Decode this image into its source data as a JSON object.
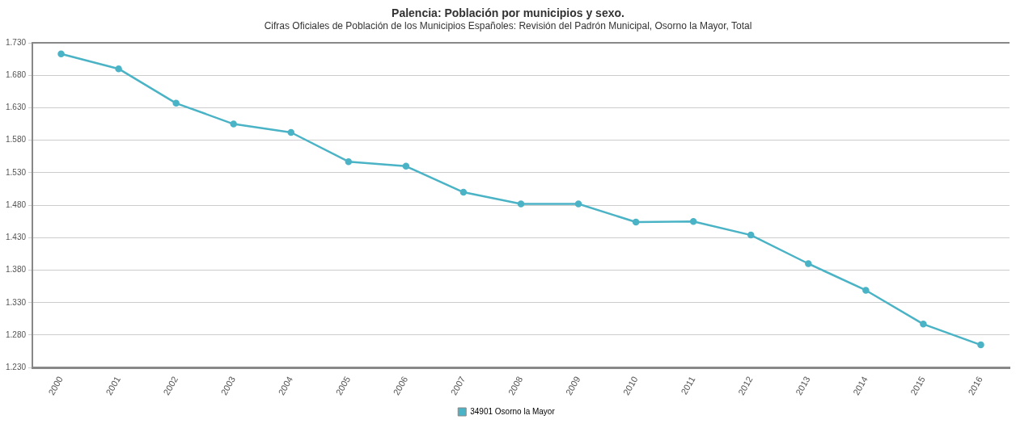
{
  "chart_data": {
    "type": "line",
    "title": "Palencia: Población por municipios y sexo.",
    "subtitle": "Cifras Oficiales de Población de los Municipios Españoles: Revisión del Padrón Municipal, Osorno la Mayor, Total",
    "categories": [
      "2000",
      "2001",
      "2002",
      "2003",
      "2004",
      "2005",
      "2006",
      "2007",
      "2008",
      "2009",
      "2010",
      "2011",
      "2012",
      "2013",
      "2014",
      "2015",
      "2016"
    ],
    "series": [
      {
        "name": "34901 Osorno la Mayor",
        "color": "#4bb3c6",
        "values": [
          1713,
          1690,
          1637,
          1605,
          1592,
          1547,
          1540,
          1500,
          1482,
          1482,
          1454,
          1455,
          1434,
          1390,
          1349,
          1297,
          1265
        ]
      }
    ],
    "ylim": [
      1230,
      1730
    ],
    "yticks": [
      {
        "value": 1230,
        "label": "1.230"
      },
      {
        "value": 1280,
        "label": "1.280"
      },
      {
        "value": 1330,
        "label": "1.330"
      },
      {
        "value": 1380,
        "label": "1.380"
      },
      {
        "value": 1430,
        "label": "1.430"
      },
      {
        "value": 1480,
        "label": "1.480"
      },
      {
        "value": 1530,
        "label": "1.530"
      },
      {
        "value": 1580,
        "label": "1.580"
      },
      {
        "value": 1630,
        "label": "1.630"
      },
      {
        "value": 1680,
        "label": "1.680"
      },
      {
        "value": 1730,
        "label": "1.730"
      }
    ],
    "grid": "y",
    "legend": "bottom",
    "marker": "circle",
    "line_style": "solid"
  }
}
